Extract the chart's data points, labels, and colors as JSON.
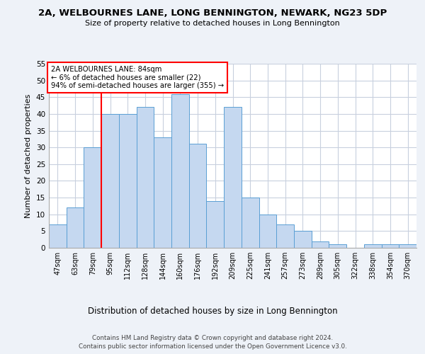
{
  "title1": "2A, WELBOURNES LANE, LONG BENNINGTON, NEWARK, NG23 5DP",
  "title2": "Size of property relative to detached houses in Long Bennington",
  "xlabel": "Distribution of detached houses by size in Long Bennington",
  "ylabel": "Number of detached properties",
  "categories": [
    "47sqm",
    "63sqm",
    "79sqm",
    "95sqm",
    "112sqm",
    "128sqm",
    "144sqm",
    "160sqm",
    "176sqm",
    "192sqm",
    "209sqm",
    "225sqm",
    "241sqm",
    "257sqm",
    "273sqm",
    "289sqm",
    "305sqm",
    "322sqm",
    "338sqm",
    "354sqm",
    "370sqm"
  ],
  "values": [
    7,
    12,
    30,
    40,
    40,
    42,
    33,
    46,
    31,
    14,
    42,
    15,
    10,
    7,
    5,
    2,
    1,
    0,
    1,
    1,
    1
  ],
  "bar_color": "#c5d8f0",
  "bar_edge_color": "#5a9fd4",
  "red_line_index": 2,
  "annotation_lines": [
    "2A WELBOURNES LANE: 84sqm",
    "← 6% of detached houses are smaller (22)",
    "94% of semi-detached houses are larger (355) →"
  ],
  "ylim": [
    0,
    55
  ],
  "yticks": [
    0,
    5,
    10,
    15,
    20,
    25,
    30,
    35,
    40,
    45,
    50,
    55
  ],
  "footer1": "Contains HM Land Registry data © Crown copyright and database right 2024.",
  "footer2": "Contains public sector information licensed under the Open Government Licence v3.0.",
  "background_color": "#eef2f8",
  "plot_background": "#ffffff",
  "grid_color": "#c8d0de"
}
